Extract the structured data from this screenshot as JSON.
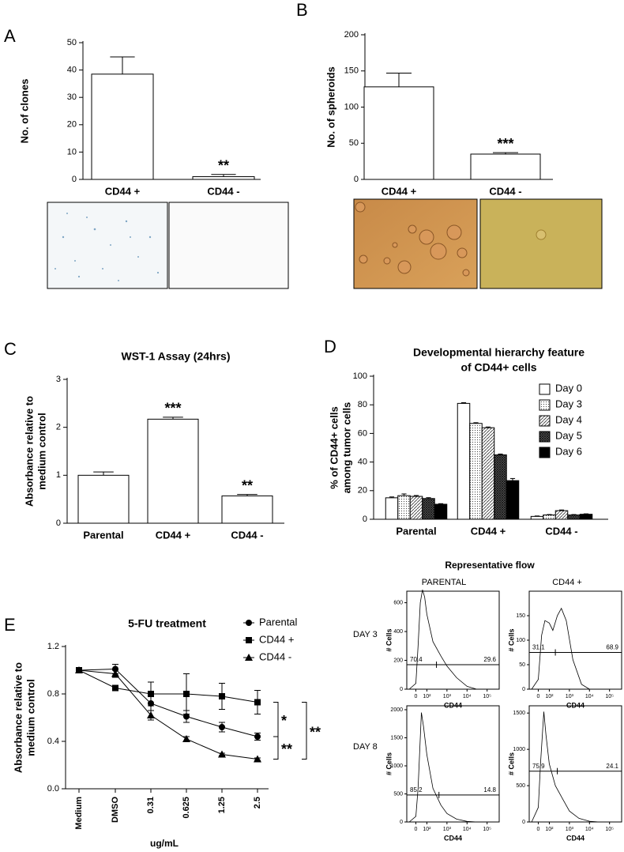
{
  "panel_labels": [
    "A",
    "B",
    "C",
    "D",
    "E"
  ],
  "flow_figure": {
    "title": "Representative flow",
    "columns": [
      "PARENTAL",
      "CD44 +"
    ],
    "rows": [
      "DAY 3",
      "DAY 8"
    ]
  },
  "chart_data": [
    {
      "type": "bar",
      "ylabel": "No. of clones",
      "categories": [
        "CD44 +",
        "CD44 -"
      ],
      "values": [
        38.5,
        1
      ],
      "errors": [
        6.3,
        0.8
      ],
      "ylim": [
        0,
        50
      ],
      "yticks": [
        0,
        10,
        20,
        30,
        40,
        50
      ],
      "color": "#ffffff",
      "significance": [
        {
          "category": "CD44 -",
          "label": "**"
        }
      ]
    },
    {
      "type": "bar",
      "ylabel": "No. of spheroids",
      "categories": [
        "CD44 +",
        "CD44 -"
      ],
      "values": [
        128,
        35
      ],
      "errors": [
        19,
        2
      ],
      "ylim": [
        0,
        200
      ],
      "yticks": [
        0,
        50,
        100,
        150,
        200
      ],
      "color": "#ffffff",
      "significance": [
        {
          "category": "CD44 -",
          "label": "***"
        }
      ]
    },
    {
      "type": "bar",
      "title": "WST-1 Assay (24hrs)",
      "ylabel": [
        "Absorbance relative to",
        "medium control"
      ],
      "categories": [
        "Parental",
        "CD44 +",
        "CD44 -"
      ],
      "values": [
        1.0,
        2.17,
        0.57
      ],
      "errors": [
        0.07,
        0.04,
        0.03
      ],
      "ylim": [
        0,
        3
      ],
      "yticks": [
        0,
        1,
        2,
        3
      ],
      "color": "#ffffff",
      "significance": [
        {
          "category": "CD44 +",
          "label": "***"
        },
        {
          "category": "CD44 -",
          "label": "**"
        }
      ]
    },
    {
      "type": "grouped_bar",
      "title": [
        "Developmental hierarchy feature",
        "of CD44+ cells"
      ],
      "ylabel": [
        "% of CD44+ cells",
        "among tumor cells"
      ],
      "categories": [
        "Parental",
        "CD44 +",
        "CD44 -"
      ],
      "ylim": [
        0,
        100
      ],
      "yticks": [
        0,
        20,
        40,
        60,
        80,
        100
      ],
      "legend": "upper right",
      "series": [
        {
          "name": "Day 0",
          "pattern": "none",
          "values": [
            15,
            81,
            2
          ],
          "errors": [
            0.6,
            0.5,
            0.3
          ]
        },
        {
          "name": "Day 3",
          "pattern": "dots",
          "values": [
            16.5,
            67,
            3
          ],
          "errors": [
            1.2,
            0.5,
            0.3
          ]
        },
        {
          "name": "Day 4",
          "pattern": "hatch",
          "values": [
            16,
            64,
            6
          ],
          "errors": [
            0.6,
            0.5,
            0.5
          ]
        },
        {
          "name": "Day 5",
          "pattern": "crosshatch",
          "values": [
            14.5,
            45,
            3
          ],
          "errors": [
            0.6,
            0.6,
            0.3
          ]
        },
        {
          "name": "Day 6",
          "pattern": "solid",
          "values": [
            10.5,
            27,
            3.5
          ],
          "errors": [
            0.4,
            1.5,
            0.3
          ]
        }
      ]
    },
    {
      "type": "line",
      "title": "5-FU treatment",
      "ylabel": [
        "Absorbance relative to",
        "medium control"
      ],
      "xlabel": "ug/mL",
      "categories": [
        "Medium",
        "DMSO",
        "0.31",
        "0.625",
        "1.25",
        "2.5"
      ],
      "ylim": [
        0,
        1.2
      ],
      "yticks": [
        {
          "value": 0,
          "label": "0.0"
        },
        0.4,
        0.8,
        1.2
      ],
      "legend": "upper right",
      "series": [
        {
          "name": "Parental",
          "marker": "circle",
          "values": [
            1.0,
            1.01,
            0.72,
            0.61,
            0.52,
            0.44
          ],
          "errors": [
            0.02,
            0.04,
            0.06,
            0.05,
            0.04,
            0.03
          ]
        },
        {
          "name": "CD44 +",
          "marker": "square",
          "values": [
            1.0,
            0.85,
            0.8,
            0.8,
            0.78,
            0.73
          ],
          "errors": [
            0.02,
            0.02,
            0.1,
            0.17,
            0.11,
            0.1
          ]
        },
        {
          "name": "CD44 -",
          "marker": "triangle",
          "values": [
            1.0,
            0.97,
            0.62,
            0.42,
            0.29,
            0.25
          ],
          "errors": [
            0.02,
            0.03,
            0.04,
            0.02,
            0.01,
            0.01
          ]
        }
      ],
      "brackets": [
        {
          "from": "CD44 +",
          "to": "Parental",
          "label": "*"
        },
        {
          "from": "Parental",
          "to": "CD44 -",
          "label": "**"
        },
        {
          "from": "CD44 +",
          "to": "CD44 -",
          "label": "**"
        }
      ]
    },
    {
      "type": "flow",
      "ylabel": "# Cells",
      "xlabel": "CD44",
      "xlim": [
        -82,
        400000
      ],
      "xticks": [
        0,
        {
          "value": 100,
          "label": "10²"
        },
        {
          "value": 1000,
          "label": "10³"
        },
        {
          "value": 10000,
          "label": "10⁴"
        },
        {
          "value": 100000,
          "label": "10⁵"
        }
      ],
      "ylim": [
        0,
        680
      ],
      "yticks": [
        0,
        200,
        400,
        600
      ],
      "x": [
        -60,
        0,
        20,
        40,
        60,
        80,
        100,
        200,
        500,
        1000,
        3000,
        10000,
        30000
      ],
      "values": [
        0,
        40,
        300,
        600,
        690,
        640,
        520,
        330,
        230,
        160,
        80,
        20,
        0
      ],
      "gate": {
        "y": 170,
        "x": 300,
        "percent": [
          70.4,
          29.6
        ]
      }
    },
    {
      "type": "flow",
      "ylabel": "# Cells",
      "xlabel": "CD44",
      "xlim": [
        -82,
        400000
      ],
      "xticks": [
        0,
        {
          "value": 100,
          "label": "10²"
        },
        {
          "value": 1000,
          "label": "10³"
        },
        {
          "value": 10000,
          "label": "10⁴"
        },
        {
          "value": 100000,
          "label": "10⁵"
        }
      ],
      "ylim": [
        0,
        200
      ],
      "yticks": [
        0,
        50,
        100,
        150
      ],
      "x": [
        -60,
        0,
        30,
        60,
        100,
        150,
        250,
        400,
        700,
        1500,
        4000,
        10000
      ],
      "values": [
        0,
        20,
        110,
        140,
        135,
        120,
        150,
        165,
        140,
        60,
        10,
        0
      ],
      "gate": {
        "y": 75,
        "x": 200,
        "percent": [
          31.1,
          68.9
        ]
      }
    },
    {
      "type": "flow",
      "ylabel": "# Cells",
      "xlabel": "CD44",
      "xlim": [
        -82,
        400000
      ],
      "xticks": [
        0,
        {
          "value": 100,
          "label": "10²"
        },
        {
          "value": 1000,
          "label": "10³"
        },
        {
          "value": 10000,
          "label": "10⁴"
        },
        {
          "value": 100000,
          "label": "10⁵"
        }
      ],
      "ylim": [
        0,
        2070
      ],
      "yticks": [
        0,
        500,
        1000,
        1500,
        2000
      ],
      "x": [
        -60,
        0,
        20,
        50,
        70,
        100,
        200,
        500,
        1000,
        3000,
        10000,
        30000
      ],
      "values": [
        0,
        100,
        600,
        1950,
        1700,
        1200,
        600,
        300,
        150,
        50,
        10,
        0
      ],
      "gate": {
        "y": 480,
        "x": 400,
        "percent": [
          85.2,
          14.8
        ]
      }
    },
    {
      "type": "flow",
      "ylabel": "# Cells",
      "xlabel": "CD44",
      "xlim": [
        -82,
        400000
      ],
      "xticks": [
        0,
        {
          "value": 100,
          "label": "10²"
        },
        {
          "value": 1000,
          "label": "10³"
        },
        {
          "value": 10000,
          "label": "10⁴"
        },
        {
          "value": 100000,
          "label": "10⁵"
        }
      ],
      "ylim": [
        0,
        1600
      ],
      "yticks": [
        0,
        500,
        1000,
        1500
      ],
      "x": [
        -60,
        0,
        20,
        50,
        70,
        100,
        200,
        500,
        1000,
        3000,
        10000,
        30000
      ],
      "values": [
        0,
        200,
        800,
        1520,
        1200,
        800,
        500,
        300,
        150,
        50,
        10,
        0
      ],
      "gate": {
        "y": 700,
        "x": 250,
        "percent": [
          75.9,
          24.1
        ]
      }
    }
  ]
}
